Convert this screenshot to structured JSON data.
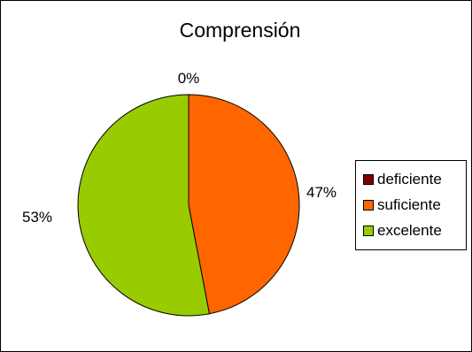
{
  "chart_data": {
    "type": "pie",
    "title": "Comprensión",
    "categories": [
      "deficiente",
      "suficiente",
      "excelente"
    ],
    "values": [
      0,
      47,
      53
    ],
    "value_labels": [
      "0%",
      "47%",
      "53%"
    ],
    "colors": [
      "#800000",
      "#FF6600",
      "#99CC00"
    ],
    "legend_position": "right"
  }
}
